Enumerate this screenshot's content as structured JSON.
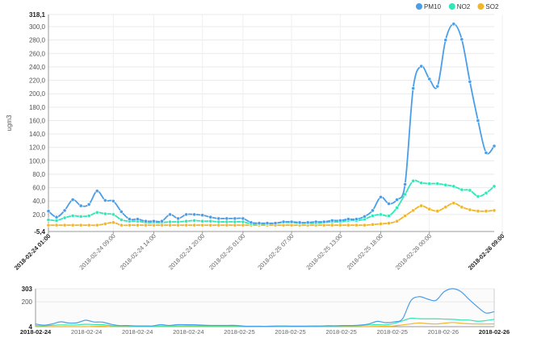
{
  "chart_data": [
    {
      "type": "line",
      "ylabel": "ugm3",
      "ylim": [
        -5.4,
        318.1
      ],
      "y_axis_labels": [
        "318,1",
        "300,0",
        "280,0",
        "260,0",
        "240,0",
        "220,0",
        "200,0",
        "180,0",
        "160,0",
        "140,0",
        "120,0",
        "100,0",
        "80,0",
        "60,0",
        "40,0",
        "20,0",
        "-5,4"
      ],
      "y_tick_values": [
        300,
        280,
        260,
        240,
        220,
        200,
        180,
        160,
        140,
        120,
        100,
        80,
        60,
        40,
        20
      ],
      "x_tick_labels": [
        "2018-02-24 01:00",
        "2018-02-24 09:00",
        "2018-02-24 14:00",
        "2018-02-24 20:00",
        "2018-02-25 01:00",
        "2018-02-25 07:00",
        "2018-02-25 13:00",
        "2018-02-25 18:00",
        "2018-02-26 00:00",
        "2018-02-26 09:00"
      ],
      "x_tick_index": [
        0,
        8,
        13,
        19,
        24,
        30,
        36,
        41,
        47,
        56
      ],
      "legend": {
        "position": "top-right"
      },
      "grid": true,
      "series": [
        {
          "name": "PM10",
          "color": "#4a9ee8",
          "values": [
            25,
            16,
            26,
            42,
            33,
            35,
            55,
            41,
            40,
            24,
            13,
            13,
            10,
            10,
            10,
            20,
            14,
            20,
            20,
            19,
            16,
            14,
            14,
            14,
            14,
            8,
            7,
            7,
            7,
            9,
            9,
            8,
            8,
            9,
            9,
            11,
            11,
            13,
            13,
            17,
            26,
            46,
            36,
            42,
            65,
            208,
            241,
            222,
            211,
            280,
            304,
            281,
            218,
            160,
            112,
            122
          ]
        },
        {
          "name": "NO2",
          "color": "#2fe8b6",
          "values": [
            12,
            11,
            15,
            18,
            17,
            18,
            23,
            21,
            20,
            12,
            10,
            10,
            8,
            8,
            8,
            9,
            9,
            10,
            11,
            10,
            10,
            9,
            9,
            9,
            9,
            6,
            6,
            6,
            7,
            8,
            8,
            7,
            7,
            7,
            8,
            9,
            9,
            11,
            11,
            13,
            18,
            20,
            18,
            30,
            50,
            70,
            67,
            66,
            66,
            64,
            62,
            57,
            56,
            47,
            52,
            62
          ]
        },
        {
          "name": "SO2",
          "color": "#f0b62e",
          "values": [
            4,
            4,
            4,
            4,
            4,
            4,
            4,
            6,
            8,
            4,
            4,
            4,
            4,
            4,
            4,
            4,
            4,
            4,
            4,
            4,
            4,
            4,
            4,
            4,
            4,
            4,
            4,
            4,
            4,
            4,
            4,
            4,
            4,
            4,
            4,
            4,
            4,
            4,
            4,
            4,
            5,
            6,
            7,
            10,
            18,
            26,
            33,
            28,
            25,
            31,
            37,
            31,
            27,
            25,
            25,
            26
          ]
        }
      ]
    },
    {
      "type": "area",
      "role": "navigator",
      "y_axis_labels": [
        "303",
        "200",
        "4"
      ],
      "x_tick_labels": [
        "2018-02-24",
        "2018-02-24",
        "2018-02-24",
        "2018-02-24",
        "2018-02-25",
        "2018-02-25",
        "2018-02-25",
        "2018-02-25",
        "2018-02-26",
        "2018-02-26"
      ]
    }
  ]
}
